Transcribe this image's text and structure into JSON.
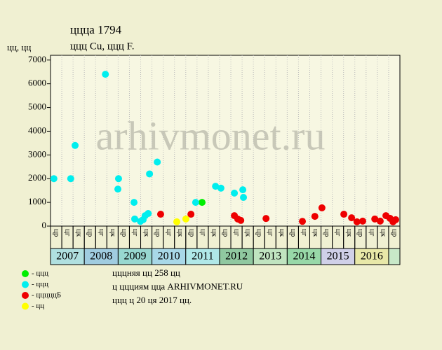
{
  "chart_data": {
    "type": "scatter",
    "title": "ццца 1794",
    "subtitle": "ццц Cu, ццц F.",
    "y_label": "цц, цц",
    "watermark": "arhivmonet.ru",
    "xlim": [
      2007,
      2017.375
    ],
    "ylim": [
      0,
      7200
    ],
    "yticks": [
      0,
      1000,
      2000,
      3000,
      4000,
      5000,
      6000,
      7000
    ],
    "column_labels": [
      "цр",
      "цг",
      "цк",
      "цр",
      "цг",
      "цк",
      "цр",
      "цг",
      "цк",
      "цр",
      "цг",
      "цк",
      "цр",
      "цг",
      "цк",
      "цр",
      "цг",
      "цк",
      "цр",
      "цг",
      "цк",
      "цр",
      "цг",
      "цк",
      "цр",
      "цг",
      "цк",
      "цр",
      "цг",
      "цк",
      "цр"
    ],
    "years": [
      {
        "label": "2007",
        "color": "#b0e0e0"
      },
      {
        "label": "2008",
        "color": "#a0cce0"
      },
      {
        "label": "2009",
        "color": "#98d8d0"
      },
      {
        "label": "2010",
        "color": "#a8d8e8"
      },
      {
        "label": "2011",
        "color": "#b0e8e8"
      },
      {
        "label": "2012",
        "color": "#90c8a0"
      },
      {
        "label": "2013",
        "color": "#c0e4c0"
      },
      {
        "label": "2014",
        "color": "#98d8a8"
      },
      {
        "label": "2015",
        "color": "#d0d0e8"
      },
      {
        "label": "2016",
        "color": "#e8e8a8"
      }
    ],
    "series": [
      {
        "name": "- ццц",
        "color": "#00ee00",
        "x": [
          2011.5
        ],
        "values": [
          1000
        ]
      },
      {
        "name": "- ццц",
        "color": "#00eeee",
        "x": [
          2007.1,
          2007.6,
          2007.73,
          2008.63,
          2009.02,
          2009.0,
          2009.48,
          2009.5,
          2009.67,
          2009.75,
          2009.81,
          2009.9,
          2009.94,
          2010.17,
          2011.31,
          2011.9,
          2012.06,
          2012.46,
          2012.71,
          2012.73
        ],
        "values": [
          2000,
          2000,
          3400,
          6400,
          2000,
          1560,
          1000,
          300,
          200,
          270,
          440,
          530,
          2200,
          2700,
          1000,
          1680,
          1600,
          1390,
          1530,
          1210
        ]
      },
      {
        "name": "- цццццБ",
        "color": "#ee0000",
        "x": [
          2010.27,
          2011.17,
          2012.46,
          2012.56,
          2012.65,
          2013.4,
          2014.48,
          2014.85,
          2015.06,
          2015.71,
          2015.94,
          2016.1,
          2016.27,
          2016.63,
          2016.79,
          2016.96,
          2017.08,
          2017.17,
          2017.25
        ],
        "values": [
          500,
          500,
          440,
          300,
          240,
          320,
          200,
          410,
          770,
          500,
          350,
          180,
          210,
          300,
          210,
          440,
          330,
          180,
          270
        ]
      },
      {
        "name": "- цц",
        "color": "#ffff00",
        "x": [
          2010.75,
          2011.02
        ],
        "values": [
          180,
          300
        ]
      }
    ],
    "footer": [
      "цццняя цц 258 цц",
      "ц ццциям цца ARHIVMONET.RU",
      "ццц ц 20 ця 2017 цц."
    ]
  }
}
